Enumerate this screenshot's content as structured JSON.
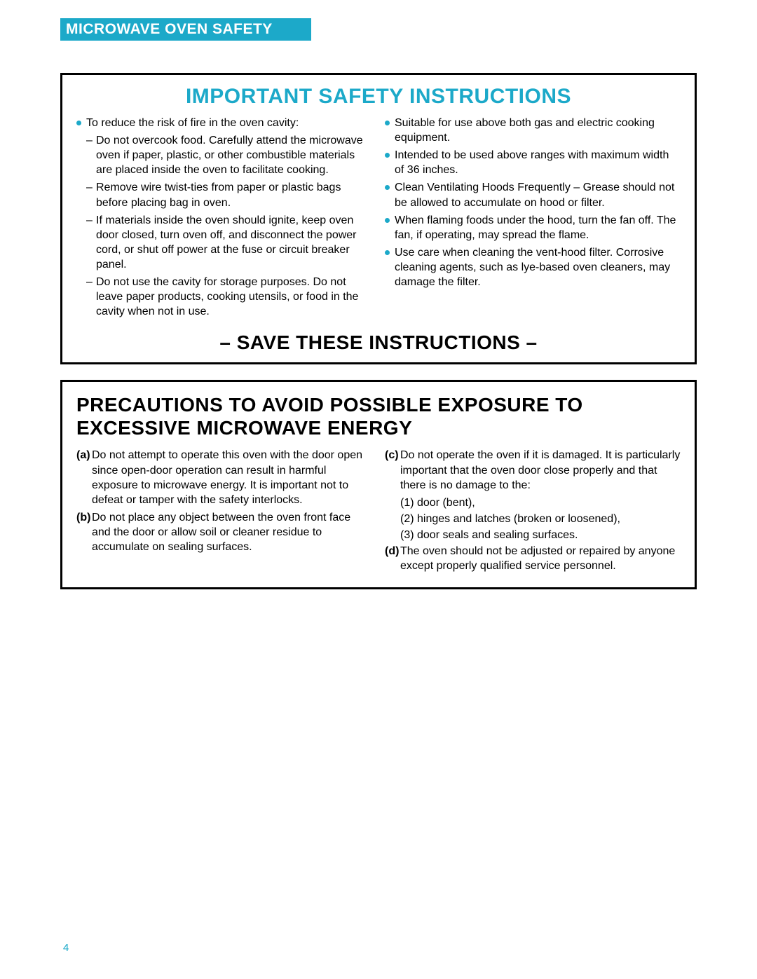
{
  "header": {
    "title": "MICROWAVE OVEN SAFETY"
  },
  "colors": {
    "accent": "#1ca9c9",
    "text": "#000000",
    "bg": "#ffffff"
  },
  "box1": {
    "title": "IMPORTANT SAFETY INSTRUCTIONS",
    "left": {
      "b1": "To reduce the risk of fire in the oven cavity:",
      "d1": "Do not overcook food. Carefully attend the microwave oven if paper, plastic, or other combustible materials are placed inside the oven to facilitate cooking.",
      "d2": "Remove wire twist-ties from paper or plastic bags before placing bag in oven.",
      "d3": "If materials inside the oven should ignite, keep oven door closed, turn oven off, and disconnect the power cord, or shut off power at the fuse or circuit breaker panel.",
      "d4": "Do not use the cavity for storage purposes. Do not leave paper products, cooking utensils, or food in the cavity when not in use."
    },
    "right": {
      "b1": "Suitable for use above both gas and electric cooking equipment.",
      "b2": "Intended to be used above ranges with maximum width of 36 inches.",
      "b3": "Clean Ventilating Hoods Frequently – Grease should not be allowed to accumulate on hood or filter.",
      "b4": "When flaming foods under the hood, turn the fan off. The fan, if operating, may spread the flame.",
      "b5": "Use care when cleaning the vent-hood filter. Corrosive cleaning agents, such as lye-based oven cleaners, may damage the filter."
    },
    "save": "– SAVE THESE INSTRUCTIONS –"
  },
  "box2": {
    "title": "PRECAUTIONS TO AVOID POSSIBLE EXPOSURE TO EXCESSIVE MICROWAVE ENERGY",
    "left": {
      "a_label": "(a)",
      "a_text": "Do not attempt to operate this oven with the door open since open-door operation can result in harmful exposure to microwave energy. It is important not to defeat or tamper with the safety interlocks.",
      "b_label": "(b)",
      "b_text": "Do not place any object between the oven front face and the door or allow soil or cleaner residue to accumulate on sealing surfaces."
    },
    "right": {
      "c_label": "(c)",
      "c_text": "Do not operate the oven if it is damaged. It is particularly important that the oven door close properly and that there is no damage to the:",
      "n1_label": "(1)",
      "n1_text": "door (bent),",
      "n2_label": "(2)",
      "n2_text": "hinges and latches (broken or loosened),",
      "n3_label": "(3)",
      "n3_text": "door seals and sealing surfaces.",
      "d_label": "(d)",
      "d_text": "The oven should not be adjusted or repaired by anyone except properly qualified service personnel."
    }
  },
  "page_number": "4"
}
